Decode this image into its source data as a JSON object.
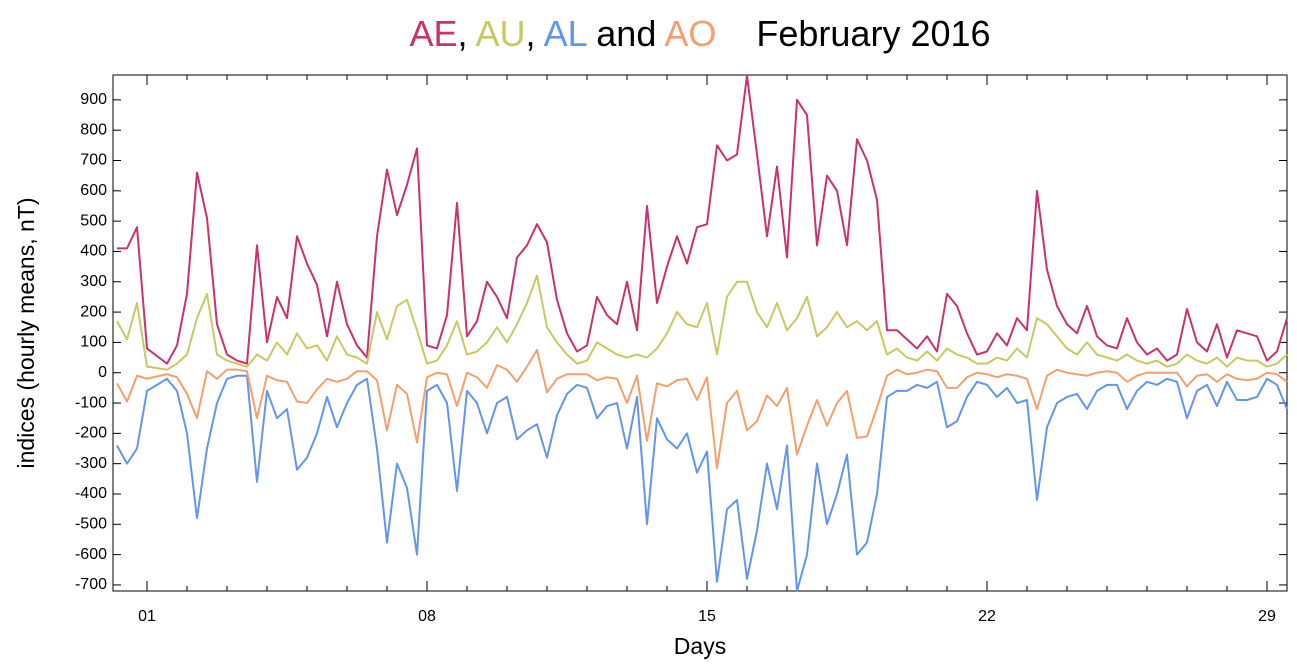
{
  "chart_data": {
    "type": "line",
    "title_joiners": [
      ", ",
      ", ",
      " and "
    ],
    "subtitle": "February 2016",
    "xlabel": "Days",
    "ylabel": "indices (hourly means, nT)",
    "xlim": [
      0.15,
      29.5
    ],
    "xticks": [
      {
        "value": 1,
        "label": "01"
      },
      {
        "value": 8,
        "label": "08"
      },
      {
        "value": 15,
        "label": "15"
      },
      {
        "value": 22,
        "label": "22"
      },
      {
        "value": 29,
        "label": "29"
      }
    ],
    "xminorticks": [
      2,
      3,
      4,
      5,
      6,
      7,
      9,
      10,
      11,
      12,
      13,
      14,
      16,
      17,
      18,
      19,
      20,
      21,
      23,
      24,
      25,
      26,
      27,
      28
    ],
    "ylim": [
      -720,
      982
    ],
    "yticks": [
      -700,
      -600,
      -500,
      -400,
      -300,
      -200,
      -100,
      0,
      100,
      200,
      300,
      400,
      500,
      600,
      700,
      800,
      900
    ],
    "x": [
      0.25,
      0.5,
      0.75,
      1,
      1.25,
      1.5,
      1.75,
      2,
      2.25,
      2.5,
      2.75,
      3,
      3.25,
      3.5,
      3.75,
      4,
      4.25,
      4.5,
      4.75,
      5,
      5.25,
      5.5,
      5.75,
      6,
      6.25,
      6.5,
      6.75,
      7,
      7.25,
      7.5,
      7.75,
      8,
      8.25,
      8.5,
      8.75,
      9,
      9.25,
      9.5,
      9.75,
      10,
      10.25,
      10.5,
      10.75,
      11,
      11.25,
      11.5,
      11.75,
      12,
      12.25,
      12.5,
      12.75,
      13,
      13.25,
      13.5,
      13.75,
      14,
      14.25,
      14.5,
      14.75,
      15,
      15.25,
      15.5,
      15.75,
      16,
      16.25,
      16.5,
      16.75,
      17,
      17.25,
      17.5,
      17.75,
      18,
      18.25,
      18.5,
      18.75,
      19,
      19.25,
      19.5,
      19.75,
      20,
      20.25,
      20.5,
      20.75,
      21,
      21.25,
      21.5,
      21.75,
      22,
      22.25,
      22.5,
      22.75,
      23,
      23.25,
      23.5,
      23.75,
      24,
      24.25,
      24.5,
      24.75,
      25,
      25.25,
      25.5,
      25.75,
      26,
      26.25,
      26.5,
      26.75,
      27,
      27.25,
      27.5,
      27.75,
      28,
      28.25,
      28.5,
      28.75,
      29,
      29.25,
      29.5
    ],
    "series": [
      {
        "name": "AE",
        "color": "#c8326e",
        "values": [
          410,
          410,
          480,
          80,
          55,
          30,
          90,
          260,
          660,
          510,
          160,
          60,
          40,
          30,
          420,
          100,
          250,
          180,
          450,
          360,
          290,
          120,
          300,
          160,
          90,
          50,
          450,
          670,
          520,
          620,
          740,
          90,
          80,
          190,
          560,
          120,
          170,
          300,
          250,
          180,
          380,
          420,
          490,
          430,
          240,
          130,
          70,
          90,
          250,
          190,
          160,
          300,
          140,
          550,
          230,
          350,
          450,
          360,
          480,
          490,
          750,
          700,
          720,
          980,
          720,
          450,
          680,
          380,
          900,
          850,
          420,
          650,
          600,
          420,
          770,
          700,
          570,
          140,
          140,
          110,
          80,
          120,
          70,
          260,
          220,
          130,
          60,
          70,
          130,
          90,
          180,
          140,
          600,
          340,
          220,
          160,
          130,
          220,
          120,
          90,
          80,
          180,
          100,
          60,
          80,
          40,
          60,
          210,
          100,
          70,
          160,
          50,
          140,
          130,
          120,
          40,
          70,
          180
        ]
      },
      {
        "name": "AU",
        "color": "#c8c864",
        "values": [
          170,
          110,
          230,
          20,
          15,
          10,
          30,
          60,
          180,
          260,
          60,
          40,
          30,
          20,
          60,
          40,
          100,
          60,
          130,
          80,
          90,
          40,
          120,
          60,
          50,
          30,
          200,
          110,
          220,
          240,
          140,
          30,
          40,
          90,
          170,
          60,
          70,
          100,
          150,
          100,
          160,
          230,
          320,
          150,
          100,
          60,
          30,
          40,
          100,
          80,
          60,
          50,
          60,
          50,
          80,
          130,
          200,
          160,
          150,
          230,
          60,
          250,
          300,
          300,
          200,
          150,
          230,
          140,
          180,
          250,
          120,
          150,
          200,
          150,
          170,
          140,
          170,
          60,
          80,
          50,
          40,
          70,
          40,
          80,
          60,
          50,
          30,
          30,
          50,
          40,
          80,
          50,
          180,
          160,
          120,
          80,
          60,
          100,
          60,
          50,
          40,
          60,
          40,
          30,
          40,
          20,
          30,
          60,
          40,
          30,
          50,
          20,
          50,
          40,
          40,
          20,
          30,
          60
        ]
      },
      {
        "name": "AL",
        "color": "#6495ed",
        "values": [
          -240,
          -300,
          -250,
          -60,
          -40,
          -20,
          -60,
          -200,
          -480,
          -250,
          -100,
          -20,
          -10,
          -10,
          -360,
          -60,
          -150,
          -120,
          -320,
          -280,
          -200,
          -80,
          -180,
          -100,
          -40,
          -20,
          -250,
          -560,
          -300,
          -380,
          -600,
          -60,
          -40,
          -100,
          -390,
          -60,
          -100,
          -200,
          -100,
          -80,
          -220,
          -190,
          -170,
          -280,
          -140,
          -70,
          -40,
          -50,
          -150,
          -110,
          -100,
          -250,
          -80,
          -500,
          -150,
          -220,
          -250,
          -200,
          -330,
          -260,
          -690,
          -450,
          -420,
          -680,
          -520,
          -300,
          -450,
          -240,
          -720,
          -600,
          -300,
          -500,
          -400,
          -270,
          -600,
          -560,
          -400,
          -80,
          -60,
          -60,
          -40,
          -50,
          -30,
          -180,
          -160,
          -80,
          -30,
          -40,
          -80,
          -50,
          -100,
          -90,
          -420,
          -180,
          -100,
          -80,
          -70,
          -120,
          -60,
          -40,
          -40,
          -120,
          -60,
          -30,
          -40,
          -20,
          -30,
          -150,
          -60,
          -40,
          -110,
          -30,
          -90,
          -90,
          -80,
          -20,
          -40,
          -120
        ]
      },
      {
        "name": "AO",
        "color": "#f4a06e",
        "values": [
          -35,
          -95,
          -10,
          -20,
          -12,
          -5,
          -15,
          -70,
          -150,
          5,
          -20,
          10,
          10,
          5,
          -150,
          -10,
          -25,
          -30,
          -95,
          -100,
          -55,
          -20,
          -30,
          -20,
          5,
          5,
          -25,
          -190,
          -40,
          -70,
          -230,
          -15,
          0,
          -5,
          -110,
          0,
          -15,
          -50,
          25,
          10,
          -30,
          20,
          75,
          -65,
          -20,
          -5,
          -5,
          -5,
          -25,
          -15,
          -20,
          -100,
          -10,
          -225,
          -35,
          -45,
          -25,
          -20,
          -90,
          -15,
          -315,
          -100,
          -60,
          -190,
          -160,
          -75,
          -110,
          -50,
          -270,
          -175,
          -90,
          -175,
          -100,
          -60,
          -215,
          -210,
          -115,
          -10,
          10,
          -5,
          0,
          10,
          5,
          -50,
          -50,
          -15,
          0,
          -5,
          -15,
          -5,
          -10,
          -20,
          -120,
          -10,
          10,
          0,
          -5,
          -10,
          0,
          5,
          0,
          -30,
          -10,
          0,
          0,
          0,
          0,
          -45,
          -10,
          -5,
          -30,
          -5,
          -20,
          -25,
          -20,
          0,
          -5,
          -30
        ]
      }
    ]
  }
}
